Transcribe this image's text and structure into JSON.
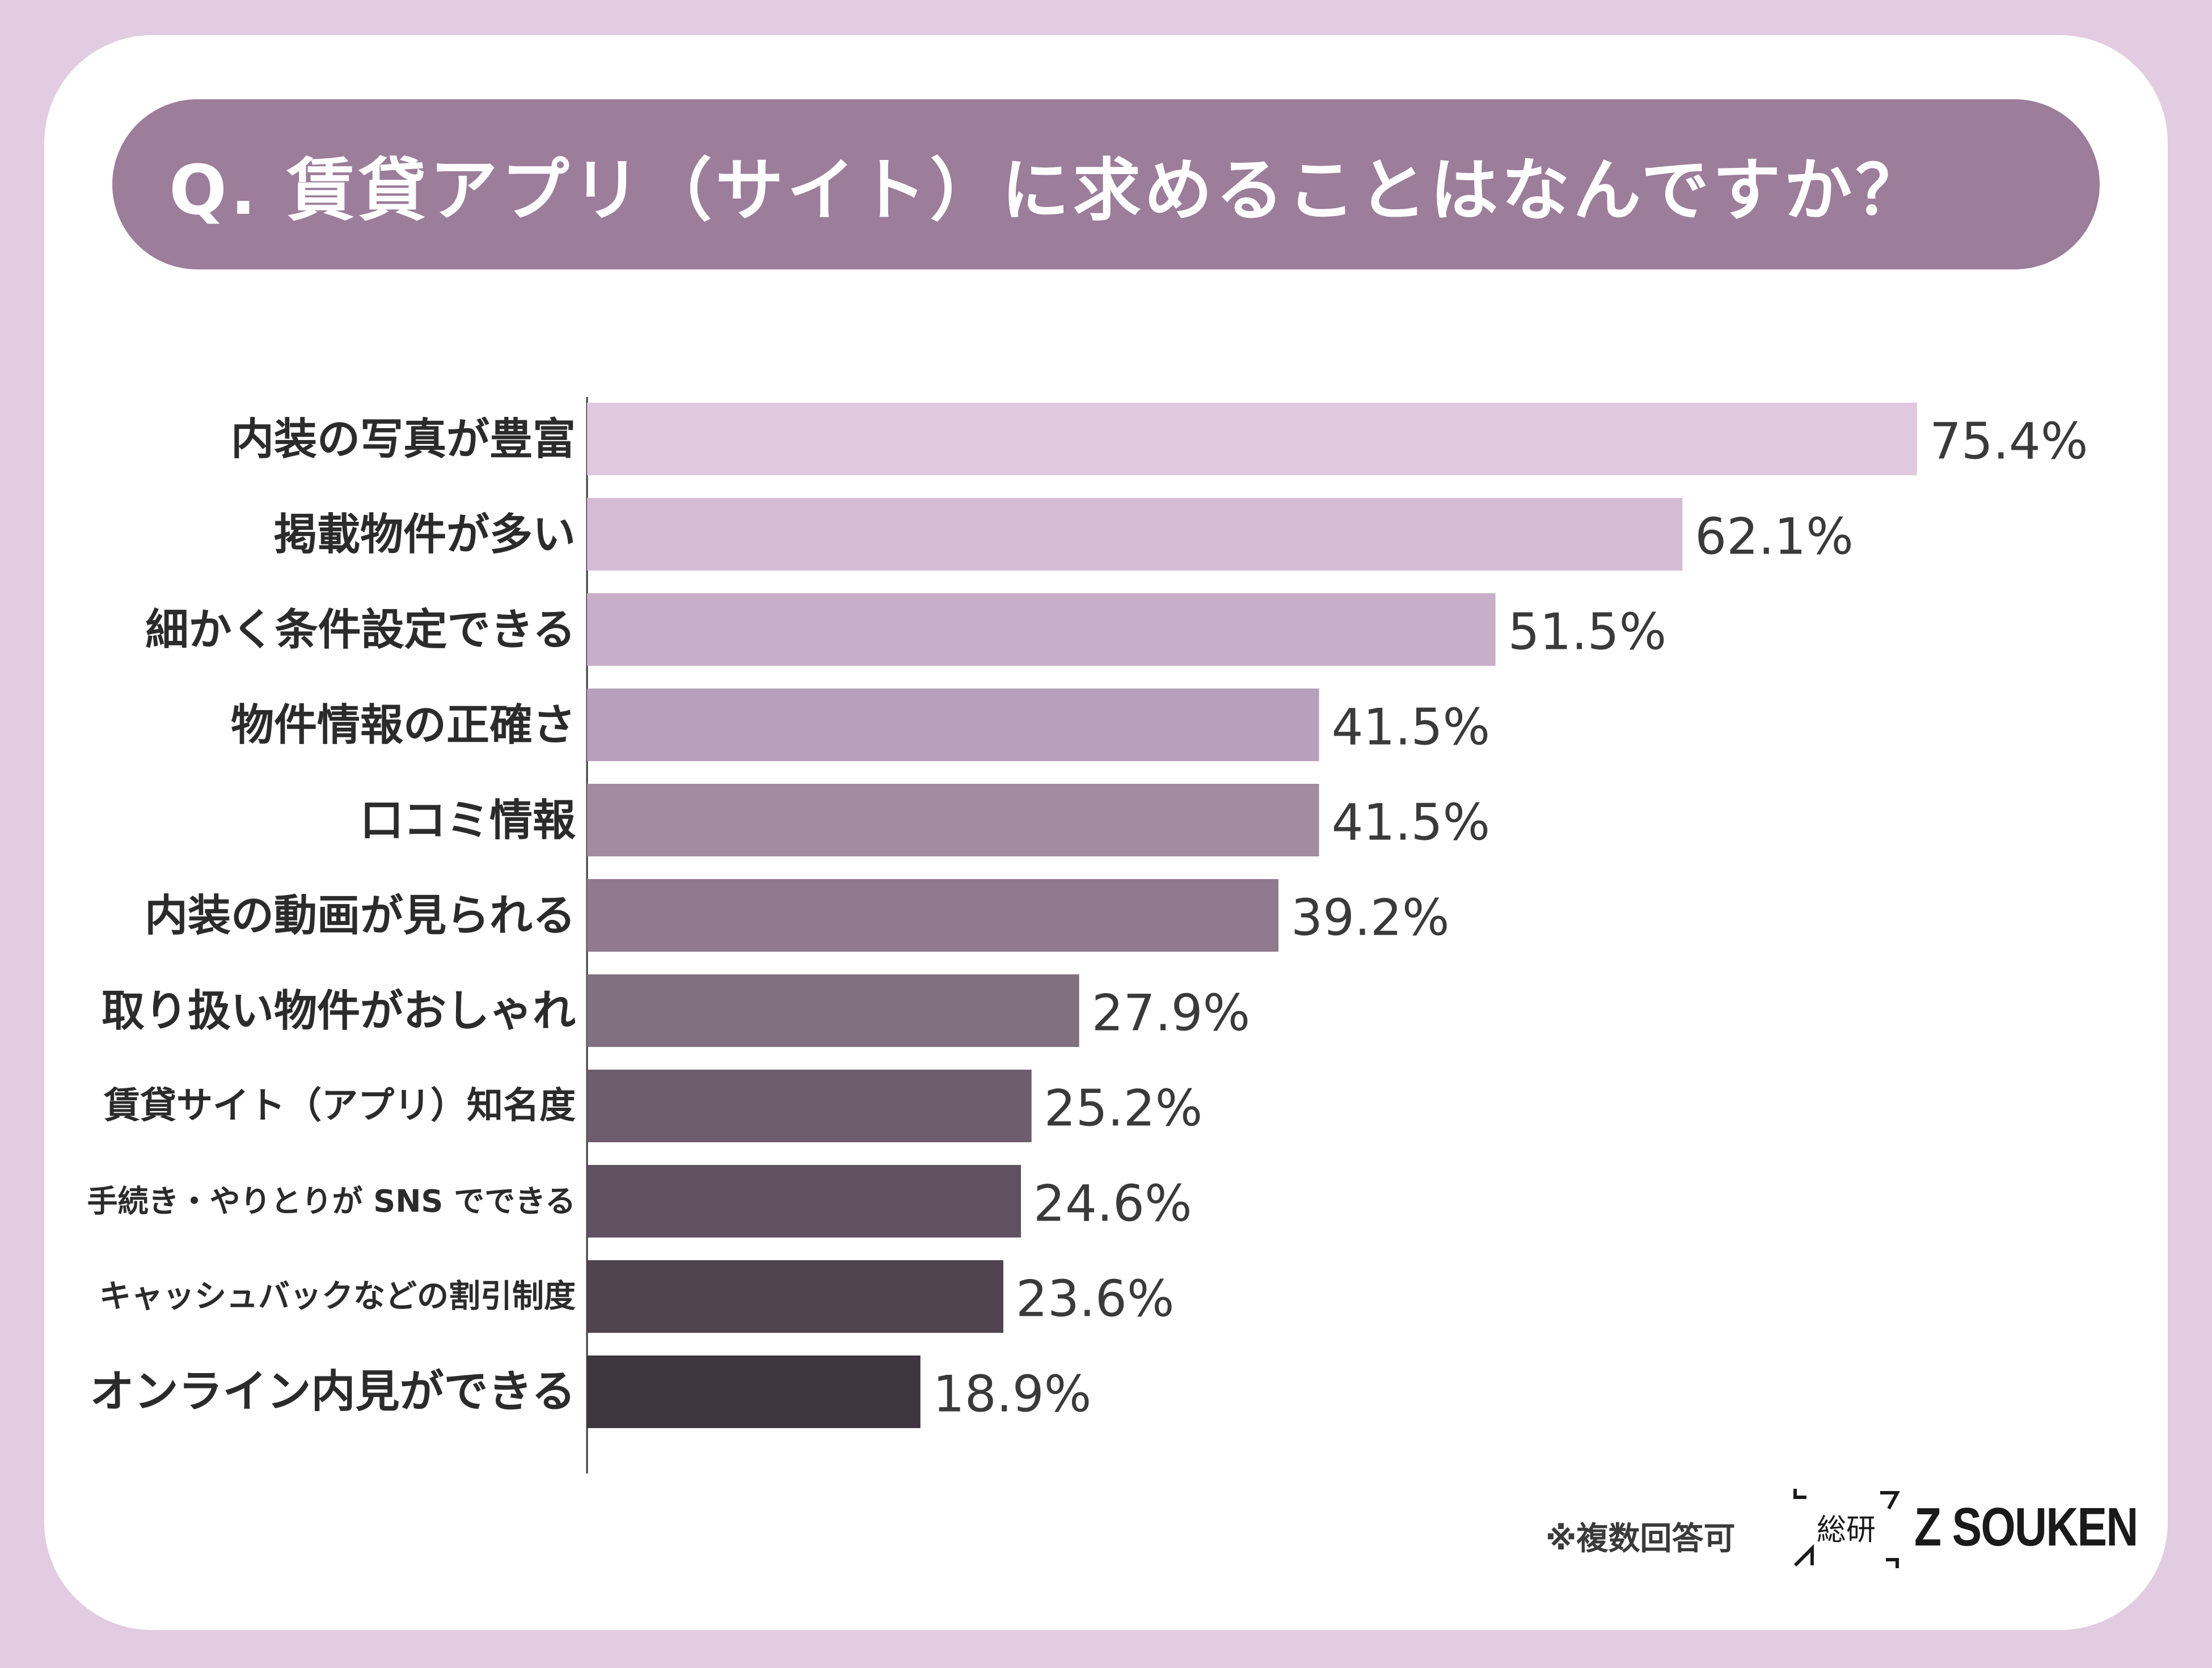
{
  "title": "Q. 賃貸アプリ（サイト）に求めることはなんですか？",
  "footnote": "※複数回答可",
  "logo": {
    "mark_text": "総研",
    "brand": "Z SOUKEN"
  },
  "colors": {
    "background": "#e2cce2",
    "title_pill": "#9c7d9a",
    "bars": [
      "#e0c9df",
      "#d5bcd4",
      "#c8afc9",
      "#b7a0bb",
      "#a28da0",
      "#907b8e",
      "#807080",
      "#6e5d6d",
      "#5f5160",
      "#504450",
      "#3e363f"
    ]
  },
  "chart_data": {
    "type": "bar",
    "orientation": "horizontal",
    "unit": "%",
    "xlim": [
      0,
      100
    ],
    "categories": [
      "内装の写真が豊富",
      "掲載物件が多い",
      "細かく条件設定できる",
      "物件情報の正確さ",
      "口コミ情報",
      "内装の動画が見られる",
      "取り扱い物件がおしゃれ",
      "賃貸サイト（アプリ）知名度",
      "手続き・やりとりが SNS でできる",
      "キャッシュバックなどの割引制度",
      "オンライン内見ができる"
    ],
    "values": [
      75.4,
      62.1,
      51.5,
      41.5,
      41.5,
      39.2,
      27.9,
      25.2,
      24.6,
      23.6,
      18.9
    ],
    "value_labels": [
      "75.4%",
      "62.1%",
      "51.5%",
      "41.5%",
      "41.5%",
      "39.2%",
      "27.9%",
      "25.2%",
      "24.6%",
      "23.6%",
      "18.9%"
    ],
    "title": "Q. 賃貸アプリ（サイト）に求めることはなんですか？",
    "xlabel": "",
    "ylabel": ""
  }
}
